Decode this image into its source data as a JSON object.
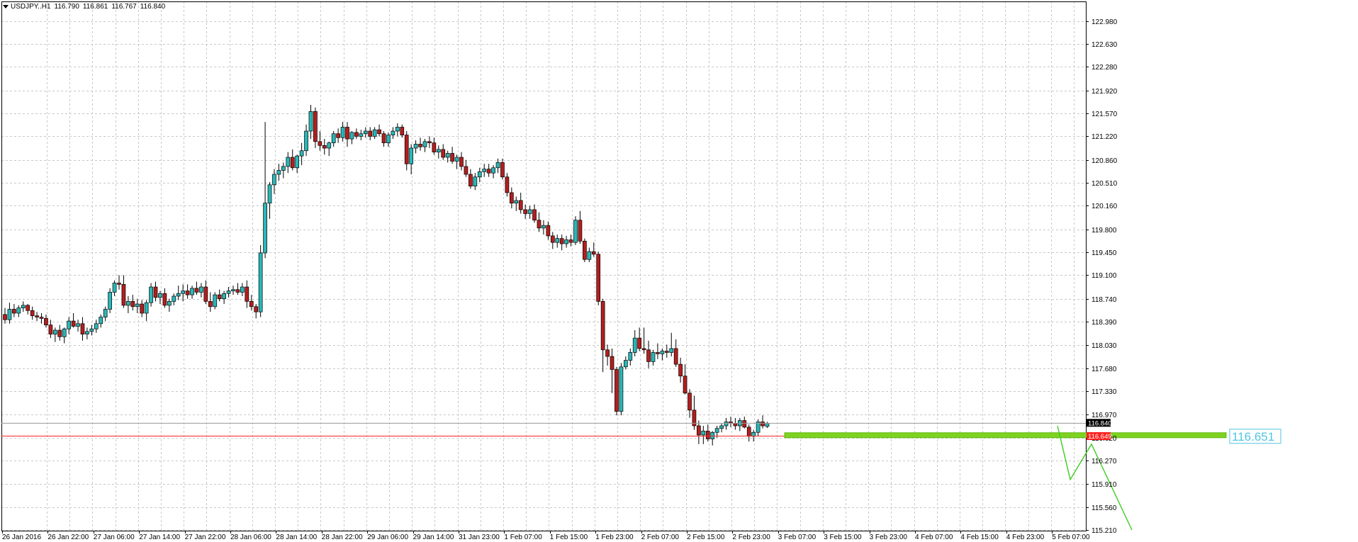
{
  "header": {
    "symbol": "USDJPY..H1",
    "open": "116.790",
    "high": "116.861",
    "low": "116.767",
    "close": "116.840"
  },
  "colors": {
    "bull": "#2ab7b7",
    "bear": "#b41e1e",
    "grid": "#c8c8c8",
    "support": "#7ed321",
    "projection": "#3ccc1e",
    "current_line": "#ff2020",
    "label_text": "#4fc6e0"
  },
  "chart_data": {
    "type": "candlestick",
    "symbol": "USDJPY",
    "timeframe": "H1",
    "ylim": [
      115.21,
      123.15
    ],
    "y_ticks": [
      "122.980",
      "122.630",
      "122.280",
      "121.920",
      "121.570",
      "121.220",
      "120.860",
      "120.510",
      "120.160",
      "119.800",
      "119.450",
      "119.100",
      "118.740",
      "118.390",
      "118.030",
      "117.680",
      "117.330",
      "116.970",
      "116.620",
      "116.270",
      "115.910",
      "115.560",
      "115.210"
    ],
    "x_ticks": [
      "26 Jan 2016",
      "26 Jan 22:00",
      "27 Jan 06:00",
      "27 Jan 14:00",
      "27 Jan 22:00",
      "28 Jan 06:00",
      "28 Jan 14:00",
      "28 Jan 22:00",
      "29 Jan 06:00",
      "29 Jan 14:00",
      "31 Jan 23:00",
      "1 Feb 07:00",
      "1 Feb 15:00",
      "1 Feb 23:00",
      "2 Feb 07:00",
      "2 Feb 15:00",
      "2 Feb 23:00",
      "3 Feb 07:00",
      "3 Feb 15:00",
      "3 Feb 23:00",
      "4 Feb 07:00",
      "4 Feb 15:00",
      "4 Feb 23:00",
      "5 Feb 07:00"
    ],
    "grid": true,
    "current_price": "116.840",
    "bid_line_price": "116.649",
    "support_level": "116.651",
    "support_value": 116.651,
    "candles": [
      [
        118.5,
        118.6,
        118.36,
        118.42
      ],
      [
        118.42,
        118.68,
        118.36,
        118.58
      ],
      [
        118.58,
        118.66,
        118.46,
        118.52
      ],
      [
        118.52,
        118.64,
        118.46,
        118.6
      ],
      [
        118.6,
        118.7,
        118.54,
        118.64
      ],
      [
        118.64,
        118.66,
        118.5,
        118.56
      ],
      [
        118.56,
        118.62,
        118.42,
        118.48
      ],
      [
        118.48,
        118.54,
        118.4,
        118.46
      ],
      [
        118.46,
        118.52,
        118.36,
        118.44
      ],
      [
        118.44,
        118.5,
        118.3,
        118.34
      ],
      [
        118.34,
        118.42,
        118.14,
        118.2
      ],
      [
        118.2,
        118.3,
        118.08,
        118.26
      ],
      [
        118.26,
        118.34,
        118.1,
        118.16
      ],
      [
        118.16,
        118.3,
        118.06,
        118.28
      ],
      [
        118.28,
        118.46,
        118.2,
        118.4
      ],
      [
        118.4,
        118.52,
        118.3,
        118.32
      ],
      [
        118.32,
        118.42,
        118.24,
        118.36
      ],
      [
        118.36,
        118.46,
        118.1,
        118.2
      ],
      [
        118.2,
        118.3,
        118.12,
        118.24
      ],
      [
        118.24,
        118.34,
        118.18,
        118.28
      ],
      [
        118.28,
        118.42,
        118.22,
        118.36
      ],
      [
        118.36,
        118.5,
        118.3,
        118.46
      ],
      [
        118.46,
        118.62,
        118.4,
        118.58
      ],
      [
        118.58,
        118.9,
        118.52,
        118.84
      ],
      [
        118.84,
        119.02,
        118.78,
        118.98
      ],
      [
        118.98,
        119.1,
        118.88,
        118.96
      ],
      [
        118.96,
        119.1,
        118.6,
        118.64
      ],
      [
        118.64,
        118.78,
        118.52,
        118.7
      ],
      [
        118.7,
        118.8,
        118.56,
        118.62
      ],
      [
        118.62,
        118.74,
        118.52,
        118.66
      ],
      [
        118.66,
        118.72,
        118.46,
        118.52
      ],
      [
        118.52,
        118.72,
        118.4,
        118.68
      ],
      [
        118.68,
        118.98,
        118.62,
        118.92
      ],
      [
        118.92,
        119.0,
        118.7,
        118.76
      ],
      [
        118.76,
        118.86,
        118.66,
        118.82
      ],
      [
        118.82,
        118.9,
        118.6,
        118.64
      ],
      [
        118.64,
        118.74,
        118.54,
        118.7
      ],
      [
        118.7,
        118.82,
        118.64,
        118.78
      ],
      [
        118.78,
        118.94,
        118.72,
        118.82
      ],
      [
        118.82,
        118.96,
        118.7,
        118.86
      ],
      [
        118.86,
        118.96,
        118.74,
        118.8
      ],
      [
        118.8,
        118.94,
        118.74,
        118.9
      ],
      [
        118.9,
        119.0,
        118.8,
        118.84
      ],
      [
        118.84,
        118.98,
        118.76,
        118.92
      ],
      [
        118.92,
        119.02,
        118.66,
        118.7
      ],
      [
        118.7,
        118.84,
        118.54,
        118.62
      ],
      [
        118.62,
        118.84,
        118.58,
        118.8
      ],
      [
        118.8,
        118.88,
        118.7,
        118.74
      ],
      [
        118.74,
        118.86,
        118.66,
        118.82
      ],
      [
        118.82,
        118.92,
        118.76,
        118.86
      ],
      [
        118.86,
        118.94,
        118.8,
        118.88
      ],
      [
        118.88,
        118.98,
        118.8,
        118.84
      ],
      [
        118.84,
        118.98,
        118.78,
        118.92
      ],
      [
        118.92,
        119.02,
        118.6,
        118.7
      ],
      [
        118.7,
        118.8,
        118.56,
        118.62
      ],
      [
        118.62,
        118.66,
        118.44,
        118.54
      ],
      [
        118.54,
        119.56,
        118.46,
        119.44
      ],
      [
        119.44,
        121.44,
        119.36,
        120.2
      ],
      [
        120.2,
        120.52,
        119.96,
        120.48
      ],
      [
        120.48,
        120.72,
        120.34,
        120.64
      ],
      [
        120.64,
        120.8,
        120.54,
        120.7
      ],
      [
        120.7,
        120.82,
        120.58,
        120.76
      ],
      [
        120.76,
        120.98,
        120.66,
        120.9
      ],
      [
        120.9,
        121.02,
        120.7,
        120.74
      ],
      [
        120.74,
        120.94,
        120.66,
        120.92
      ],
      [
        120.92,
        121.12,
        120.78,
        121.0
      ],
      [
        121.0,
        121.4,
        120.92,
        121.3
      ],
      [
        121.3,
        121.7,
        121.18,
        121.6
      ],
      [
        121.6,
        121.66,
        121.04,
        121.14
      ],
      [
        121.14,
        121.3,
        121.0,
        121.08
      ],
      [
        121.08,
        121.18,
        120.94,
        121.04
      ],
      [
        121.04,
        121.14,
        120.92,
        121.12
      ],
      [
        121.12,
        121.3,
        121.06,
        121.26
      ],
      [
        121.26,
        121.34,
        121.12,
        121.2
      ],
      [
        121.2,
        121.44,
        121.14,
        121.36
      ],
      [
        121.36,
        121.44,
        121.06,
        121.18
      ],
      [
        121.18,
        121.3,
        121.1,
        121.28
      ],
      [
        121.28,
        121.34,
        121.18,
        121.22
      ],
      [
        121.22,
        121.32,
        121.16,
        121.26
      ],
      [
        121.26,
        121.36,
        121.2,
        121.3
      ],
      [
        121.3,
        121.36,
        121.16,
        121.22
      ],
      [
        121.22,
        121.36,
        121.18,
        121.32
      ],
      [
        121.32,
        121.4,
        121.22,
        121.26
      ],
      [
        121.26,
        121.3,
        121.06,
        121.12
      ],
      [
        121.12,
        121.28,
        121.06,
        121.24
      ],
      [
        121.24,
        121.36,
        121.18,
        121.3
      ],
      [
        121.3,
        121.42,
        121.22,
        121.36
      ],
      [
        121.36,
        121.4,
        121.2,
        121.24
      ],
      [
        121.24,
        121.3,
        120.7,
        120.8
      ],
      [
        120.8,
        121.1,
        120.64,
        121.04
      ],
      [
        121.04,
        121.16,
        120.96,
        121.1
      ],
      [
        121.1,
        121.2,
        121.0,
        121.06
      ],
      [
        121.06,
        121.18,
        120.98,
        121.14
      ],
      [
        121.14,
        121.22,
        121.04,
        121.12
      ],
      [
        121.12,
        121.2,
        120.94,
        120.98
      ],
      [
        120.98,
        121.08,
        120.88,
        121.02
      ],
      [
        121.02,
        121.1,
        120.86,
        120.9
      ],
      [
        120.9,
        121.0,
        120.82,
        120.96
      ],
      [
        120.96,
        121.06,
        120.8,
        120.84
      ],
      [
        120.84,
        120.94,
        120.72,
        120.9
      ],
      [
        120.9,
        120.98,
        120.7,
        120.76
      ],
      [
        120.76,
        120.86,
        120.6,
        120.64
      ],
      [
        120.64,
        120.72,
        120.42,
        120.46
      ],
      [
        120.46,
        120.66,
        120.4,
        120.6
      ],
      [
        120.6,
        120.74,
        120.52,
        120.68
      ],
      [
        120.68,
        120.8,
        120.6,
        120.72
      ],
      [
        120.72,
        120.8,
        120.6,
        120.66
      ],
      [
        120.66,
        120.78,
        120.58,
        120.74
      ],
      [
        120.74,
        120.88,
        120.66,
        120.82
      ],
      [
        120.82,
        120.88,
        120.56,
        120.6
      ],
      [
        120.6,
        120.66,
        120.3,
        120.36
      ],
      [
        120.36,
        120.44,
        120.12,
        120.2
      ],
      [
        120.2,
        120.3,
        120.08,
        120.24
      ],
      [
        120.24,
        120.36,
        120.04,
        120.1
      ],
      [
        120.1,
        120.18,
        119.96,
        120.04
      ],
      [
        120.04,
        120.16,
        119.96,
        120.1
      ],
      [
        120.1,
        120.18,
        119.9,
        119.94
      ],
      [
        119.94,
        120.06,
        119.76,
        119.82
      ],
      [
        119.82,
        119.94,
        119.72,
        119.86
      ],
      [
        119.86,
        119.92,
        119.64,
        119.7
      ],
      [
        119.7,
        119.76,
        119.5,
        119.6
      ],
      [
        119.6,
        119.72,
        119.52,
        119.66
      ],
      [
        119.66,
        119.72,
        119.48,
        119.58
      ],
      [
        119.58,
        119.7,
        119.52,
        119.64
      ],
      [
        119.64,
        119.72,
        119.54,
        119.6
      ],
      [
        119.6,
        120.0,
        119.56,
        119.94
      ],
      [
        119.94,
        120.08,
        119.58,
        119.62
      ],
      [
        119.62,
        119.66,
        119.3,
        119.34
      ],
      [
        119.34,
        119.52,
        119.3,
        119.46
      ],
      [
        119.46,
        119.6,
        119.38,
        119.42
      ],
      [
        119.42,
        119.46,
        118.64,
        118.7
      ],
      [
        118.7,
        118.74,
        117.62,
        117.96
      ],
      [
        117.96,
        118.04,
        117.72,
        117.86
      ],
      [
        117.86,
        117.98,
        117.3,
        117.66
      ],
      [
        117.66,
        117.7,
        116.96,
        117.02
      ],
      [
        117.02,
        117.76,
        116.96,
        117.7
      ],
      [
        117.7,
        117.86,
        117.66,
        117.8
      ],
      [
        117.8,
        117.98,
        117.72,
        117.92
      ],
      [
        117.92,
        118.26,
        117.86,
        118.14
      ],
      [
        118.14,
        118.3,
        117.94,
        117.98
      ],
      [
        117.98,
        118.3,
        117.9,
        117.96
      ],
      [
        117.96,
        118.1,
        117.68,
        117.78
      ],
      [
        117.78,
        117.96,
        117.72,
        117.92
      ],
      [
        117.92,
        118.06,
        117.82,
        117.9
      ],
      [
        117.9,
        117.98,
        117.8,
        117.94
      ],
      [
        117.94,
        118.04,
        117.84,
        117.92
      ],
      [
        117.92,
        118.22,
        117.86,
        117.98
      ],
      [
        117.98,
        118.12,
        117.7,
        117.74
      ],
      [
        117.74,
        117.84,
        117.46,
        117.56
      ],
      [
        117.56,
        117.74,
        117.28,
        117.3
      ],
      [
        117.3,
        117.36,
        116.92,
        117.04
      ],
      [
        117.04,
        117.26,
        116.74,
        116.8
      ],
      [
        116.8,
        116.88,
        116.52,
        116.66
      ],
      [
        116.66,
        116.8,
        116.52,
        116.72
      ],
      [
        116.72,
        116.82,
        116.56,
        116.6
      ],
      [
        116.6,
        116.72,
        116.5,
        116.7
      ],
      [
        116.7,
        116.8,
        116.62,
        116.76
      ],
      [
        116.76,
        116.84,
        116.7,
        116.8
      ],
      [
        116.8,
        116.92,
        116.74,
        116.86
      ],
      [
        116.86,
        116.94,
        116.78,
        116.84
      ],
      [
        116.84,
        116.92,
        116.74,
        116.8
      ],
      [
        116.8,
        116.92,
        116.72,
        116.88
      ],
      [
        116.88,
        116.94,
        116.76,
        116.78
      ],
      [
        116.78,
        116.82,
        116.56,
        116.64
      ],
      [
        116.64,
        116.74,
        116.56,
        116.7
      ],
      [
        116.7,
        116.9,
        116.64,
        116.86
      ],
      [
        116.86,
        116.96,
        116.76,
        116.8
      ],
      [
        116.79,
        116.861,
        116.767,
        116.84
      ]
    ],
    "projection_path": [
      [
        116.8,
        0
      ],
      [
        115.98,
        1
      ],
      [
        116.52,
        2
      ],
      [
        115.21,
        3
      ]
    ]
  }
}
